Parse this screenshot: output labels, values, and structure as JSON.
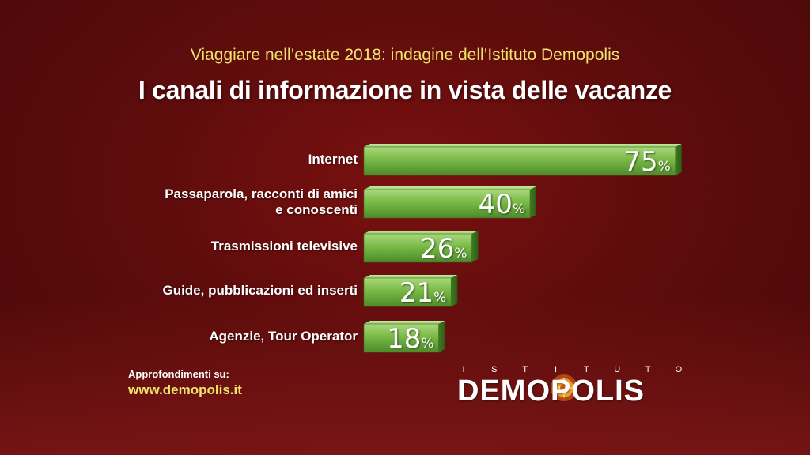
{
  "header": {
    "subtitle": "Viaggiare nell’estate 2018: indagine dell’Istituto Demopolis",
    "title": "I canali di informazione in vista delle vacanze"
  },
  "chart_data": {
    "type": "bar",
    "orientation": "horizontal",
    "categories": [
      "Internet",
      "Passaparola, racconti di amici\ne conoscenti",
      "Trasmissioni televisive",
      "Guide, pubblicazioni ed inserti",
      "Agenzie, Tour Operator"
    ],
    "values": [
      75,
      40,
      26,
      21,
      18
    ],
    "value_suffix": "%",
    "xlim": [
      0,
      100
    ],
    "bar_color": "#74b640",
    "grid": false,
    "legend": "none"
  },
  "footer": {
    "note": "Approfondimenti su:",
    "link": "www.demopolis.it"
  },
  "logo": {
    "top_text": "ISTITUTO",
    "main_text": "DEMOPOLIS"
  }
}
